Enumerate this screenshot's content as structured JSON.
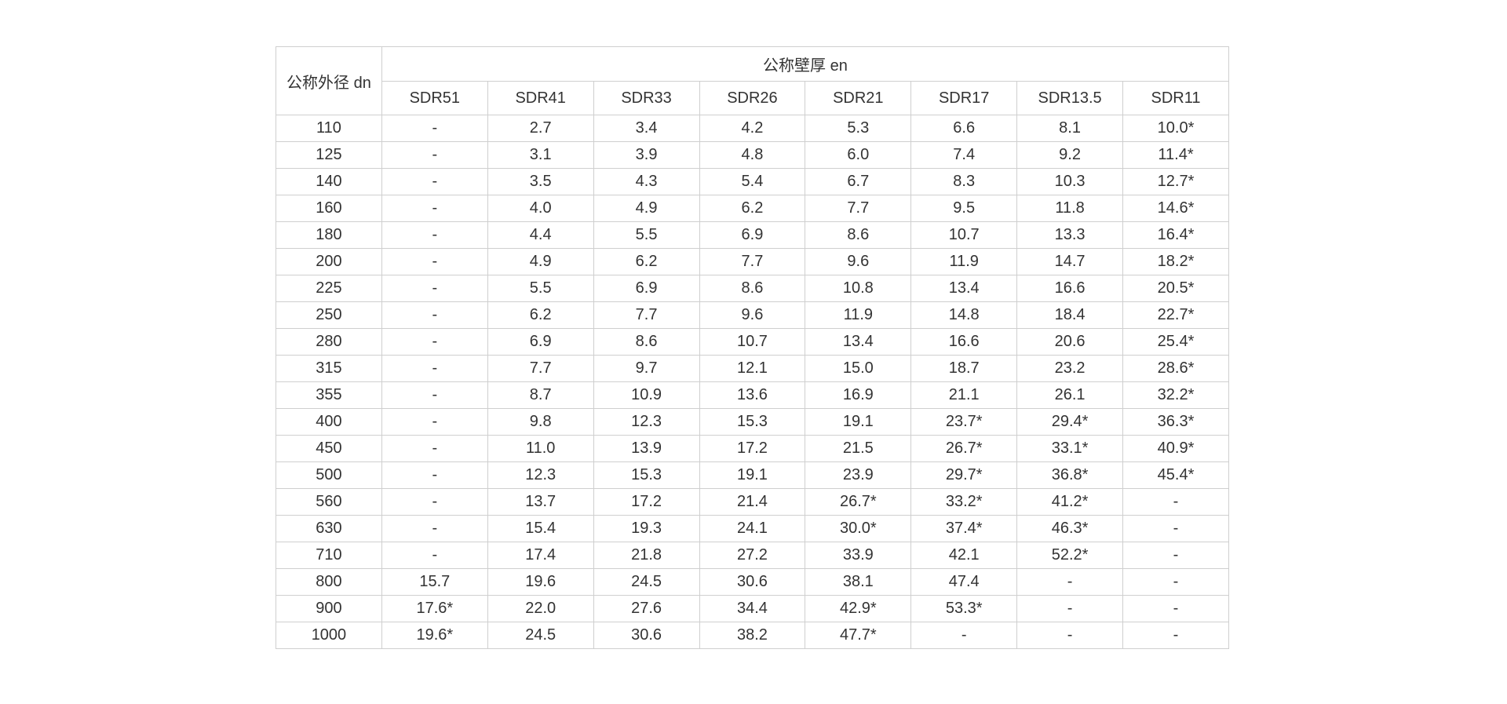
{
  "header": {
    "dn_label": "公称外径 dn",
    "en_label": "公称壁厚 en",
    "sdr": [
      "SDR51",
      "SDR41",
      "SDR33",
      "SDR26",
      "SDR21",
      "SDR17",
      "SDR13.5",
      "SDR11"
    ]
  },
  "rows": [
    [
      "110",
      "-",
      "2.7",
      "3.4",
      "4.2",
      "5.3",
      "6.6",
      "8.1",
      "10.0*"
    ],
    [
      "125",
      "-",
      "3.1",
      "3.9",
      "4.8",
      "6.0",
      "7.4",
      "9.2",
      "11.4*"
    ],
    [
      "140",
      "-",
      "3.5",
      "4.3",
      "5.4",
      "6.7",
      "8.3",
      "10.3",
      "12.7*"
    ],
    [
      "160",
      "-",
      "4.0",
      "4.9",
      "6.2",
      "7.7",
      "9.5",
      "11.8",
      "14.6*"
    ],
    [
      "180",
      "-",
      "4.4",
      "5.5",
      "6.9",
      "8.6",
      "10.7",
      "13.3",
      "16.4*"
    ],
    [
      "200",
      "-",
      "4.9",
      "6.2",
      "7.7",
      "9.6",
      "11.9",
      "14.7",
      "18.2*"
    ],
    [
      "225",
      "-",
      "5.5",
      "6.9",
      "8.6",
      "10.8",
      "13.4",
      "16.6",
      "20.5*"
    ],
    [
      "250",
      "-",
      "6.2",
      "7.7",
      "9.6",
      "11.9",
      "14.8",
      "18.4",
      "22.7*"
    ],
    [
      "280",
      "-",
      "6.9",
      "8.6",
      "10.7",
      "13.4",
      "16.6",
      "20.6",
      "25.4*"
    ],
    [
      "315",
      "-",
      "7.7",
      "9.7",
      "12.1",
      "15.0",
      "18.7",
      "23.2",
      "28.6*"
    ],
    [
      "355",
      "-",
      "8.7",
      "10.9",
      "13.6",
      "16.9",
      "21.1",
      "26.1",
      "32.2*"
    ],
    [
      "400",
      "-",
      "9.8",
      "12.3",
      "15.3",
      "19.1",
      "23.7*",
      "29.4*",
      "36.3*"
    ],
    [
      "450",
      "-",
      "11.0",
      "13.9",
      "17.2",
      "21.5",
      "26.7*",
      "33.1*",
      "40.9*"
    ],
    [
      "500",
      "-",
      "12.3",
      "15.3",
      "19.1",
      "23.9",
      "29.7*",
      "36.8*",
      "45.4*"
    ],
    [
      "560",
      "-",
      "13.7",
      "17.2",
      "21.4",
      "26.7*",
      "33.2*",
      "41.2*",
      "-"
    ],
    [
      "630",
      "-",
      "15.4",
      "19.3",
      "24.1",
      "30.0*",
      "37.4*",
      "46.3*",
      "-"
    ],
    [
      "710",
      "-",
      "17.4",
      "21.8",
      "27.2",
      "33.9",
      "42.1",
      "52.2*",
      "-"
    ],
    [
      "800",
      "15.7",
      "19.6",
      "24.5",
      "30.6",
      "38.1",
      "47.4",
      "-",
      "-"
    ],
    [
      "900",
      "17.6*",
      "22.0",
      "27.6",
      "34.4",
      "42.9*",
      "53.3*",
      "-",
      "-"
    ],
    [
      "1000",
      "19.6*",
      "24.5",
      "30.6",
      "38.2",
      "47.7*",
      "-",
      "-",
      "-"
    ]
  ]
}
